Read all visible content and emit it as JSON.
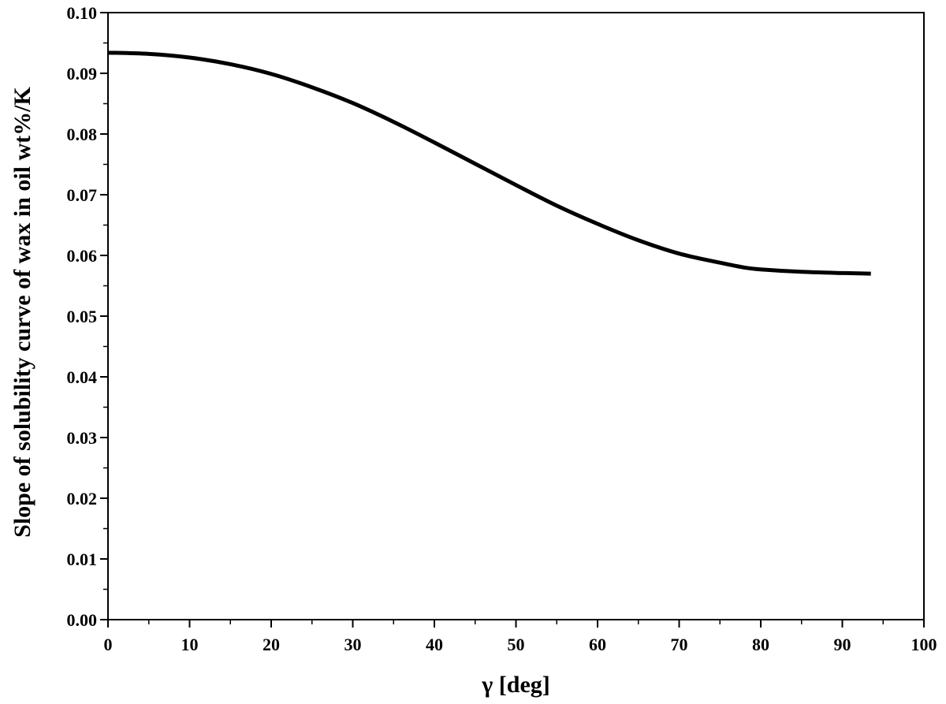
{
  "chart_data": {
    "type": "line",
    "xlabel": "γ [deg]",
    "ylabel": "Slope of solubility curve of wax in oil wt%/K",
    "xlim": [
      0,
      100
    ],
    "ylim": [
      0.0,
      0.1
    ],
    "x_ticks": [
      "0",
      "10",
      "20",
      "30",
      "40",
      "50",
      "60",
      "70",
      "80",
      "90",
      "100"
    ],
    "y_ticks": [
      "0.00",
      "0.01",
      "0.02",
      "0.03",
      "0.04",
      "0.05",
      "0.06",
      "0.07",
      "0.08",
      "0.09",
      "0.10"
    ],
    "x_minor_step": 5,
    "y_minor_step": 0.005,
    "grid": false,
    "legend": "none",
    "series": [
      {
        "color": "#000000",
        "x": [
          0,
          5,
          10,
          15,
          20,
          25,
          30,
          35,
          40,
          45,
          50,
          55,
          60,
          65,
          70,
          75,
          78,
          80,
          85,
          90,
          93.5
        ],
        "y": [
          0.0934,
          0.0932,
          0.0926,
          0.0915,
          0.0899,
          0.0877,
          0.0851,
          0.082,
          0.0786,
          0.0751,
          0.0716,
          0.0682,
          0.0652,
          0.0625,
          0.0603,
          0.0588,
          0.058,
          0.0577,
          0.0573,
          0.0571,
          0.057
        ]
      }
    ]
  }
}
